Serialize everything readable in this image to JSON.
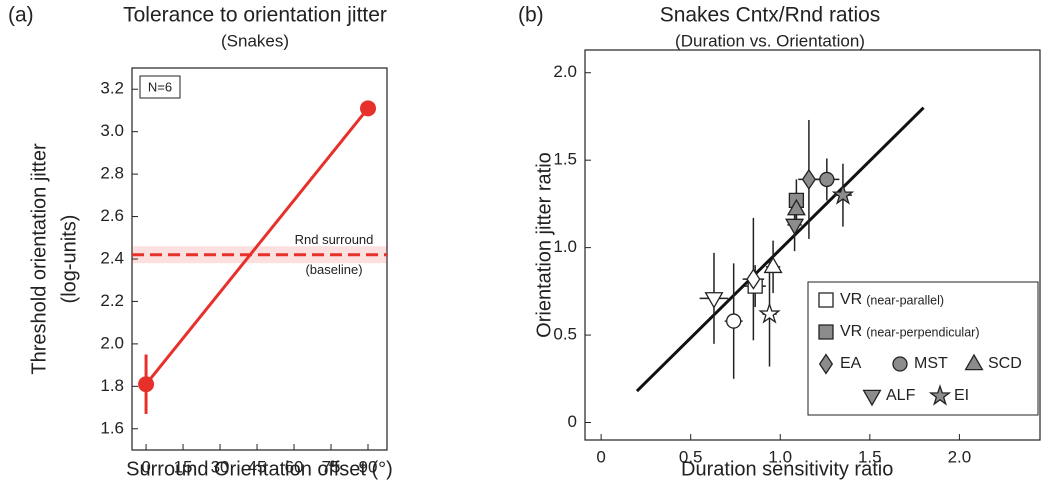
{
  "chart_data": [
    {
      "type": "line",
      "panel": "(a)",
      "title": "Tolerance to orientation jitter",
      "subtitle": "(Snakes)",
      "xlabel": "Surround Orientation offset (°)",
      "ylabel": [
        "Threshold orientation jitter",
        "(log-units)"
      ],
      "xlim": [
        -5.7,
        97.7
      ],
      "xticks": [
        0,
        15,
        30,
        45,
        60,
        75,
        90
      ],
      "ylim": [
        1.5,
        3.3
      ],
      "yticks": [
        1.6,
        1.8,
        {
          "value": 2,
          "label": "2.0"
        },
        2.2,
        2.4,
        2.6,
        2.8,
        {
          "value": 3,
          "label": "3.0"
        },
        3.2
      ],
      "series": [
        {
          "color": "#e8302a",
          "x": [
            0,
            90
          ],
          "values": [
            1.81,
            3.11
          ],
          "yerr": [
            0.14,
            0.03
          ]
        }
      ],
      "baseline": {
        "value": 2.42,
        "band": [
          2.38,
          2.46
        ],
        "color": "#e8302a",
        "label": [
          "Rnd surround",
          "(baseline)"
        ]
      },
      "annotation": "N=6"
    },
    {
      "type": "scatter",
      "panel": "(b)",
      "title": "Snakes Cntx/Rnd ratios",
      "subtitle": "(Duration vs. Orientation)",
      "xlabel": "Duration sensitivity ratio",
      "ylabel": [
        "Orientation jitter ratio"
      ],
      "xlim": [
        -0.09,
        2.45
      ],
      "xticks": [
        0,
        0.5,
        {
          "value": 1,
          "label": "1.0"
        },
        1.5,
        {
          "value": 2,
          "label": "2.0"
        }
      ],
      "ylim": [
        -0.1,
        2.13
      ],
      "yticks": [
        0,
        0.5,
        {
          "value": 1,
          "label": "1.0"
        },
        1.5,
        {
          "value": 2,
          "label": "2.0"
        }
      ],
      "fit": {
        "color": "#111111",
        "x": [
          0.2,
          1.8
        ],
        "values": [
          0.18,
          1.8
        ]
      },
      "legend_position": "lower right",
      "series": [
        {
          "name": "VR",
          "note": "(near-parallel)",
          "marker": "square",
          "color": "#ffffff",
          "x": [
            0.86
          ],
          "values": [
            0.78
          ],
          "xerr": [
            0.06
          ],
          "yerr": [
            0.12
          ],
          "colors": [
            "#ffffff"
          ]
        },
        {
          "name": "VR",
          "note": "(near-perpendicular)",
          "marker": "square",
          "color": "#8c8c8c",
          "x": [
            1.09
          ],
          "values": [
            1.27
          ],
          "xerr": [
            0.04
          ],
          "yerr": [
            0.12
          ],
          "colors": [
            "#8c8c8c"
          ]
        },
        {
          "name": "EA",
          "marker": "diamond",
          "color": "#8c8c8c",
          "x": [
            0.85,
            1.16
          ],
          "values": [
            0.82,
            1.39
          ],
          "xerr": [
            0.06,
            0.06
          ],
          "yerr": [
            0.35,
            0.34
          ],
          "colors": [
            "#ffffff",
            "#8c8c8c"
          ]
        },
        {
          "name": "MST",
          "marker": "circle",
          "color": "#8c8c8c",
          "x": [
            0.74,
            1.26
          ],
          "values": [
            0.58,
            1.39
          ],
          "xerr": [
            0.05,
            0.07
          ],
          "yerr": [
            0.33,
            0.12
          ],
          "colors": [
            "#ffffff",
            "#8c8c8c"
          ]
        },
        {
          "name": "SCD",
          "marker": "triangle-up",
          "color": "#8c8c8c",
          "x": [
            0.96,
            1.09
          ],
          "values": [
            0.89,
            1.22
          ],
          "xerr": [
            0.04,
            0.03
          ],
          "yerr": [
            0.15,
            0.1
          ],
          "colors": [
            "#ffffff",
            "#8c8c8c"
          ]
        },
        {
          "name": "ALF",
          "marker": "triangle-down",
          "color": "#8c8c8c",
          "x": [
            0.63,
            1.08
          ],
          "values": [
            0.71,
            1.13
          ],
          "xerr": [
            0.08,
            0.04
          ],
          "yerr": [
            0.26,
            0.15
          ],
          "colors": [
            "#ffffff",
            "#8c8c8c"
          ]
        },
        {
          "name": "EI",
          "marker": "star",
          "color": "#8c8c8c",
          "x": [
            0.94,
            1.35
          ],
          "values": [
            0.62,
            1.3
          ],
          "xerr": [
            0.04,
            0.05
          ],
          "yerr": [
            0.3,
            0.18
          ],
          "colors": [
            "#ffffff",
            "#8c8c8c"
          ]
        }
      ]
    }
  ]
}
